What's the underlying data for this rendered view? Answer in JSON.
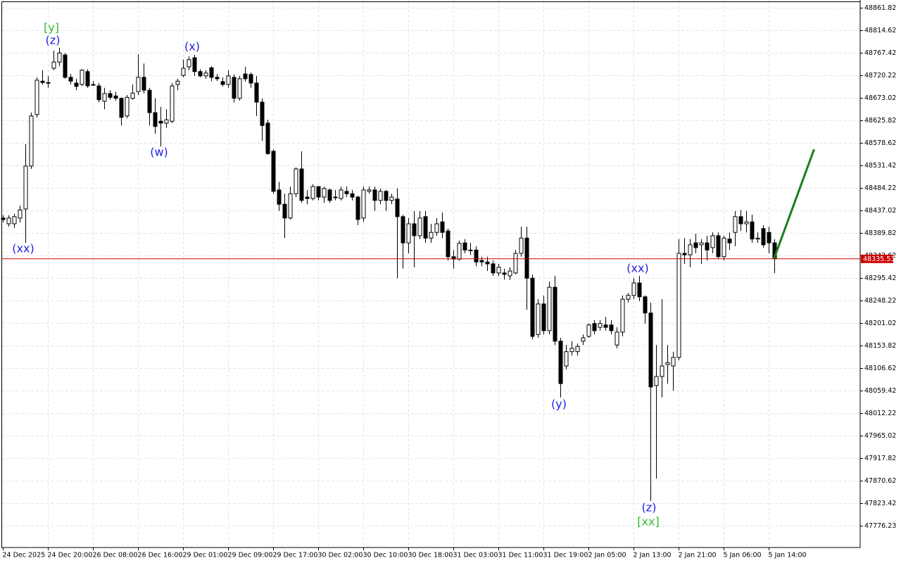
{
  "chart_data": {
    "type": "candlestick",
    "categories": [
      "24 Dec 2025",
      null,
      null,
      null,
      null,
      null,
      null,
      null,
      "24 Dec 20:00",
      null,
      null,
      null,
      null,
      null,
      null,
      null,
      "26 Dec 08:00",
      null,
      null,
      null,
      null,
      null,
      null,
      null,
      "26 Dec 16:00",
      null,
      null,
      null,
      null,
      null,
      null,
      null,
      "29 Dec 01:00",
      null,
      null,
      null,
      null,
      null,
      null,
      null,
      "29 Dec 09:00",
      null,
      null,
      null,
      null,
      null,
      null,
      null,
      "29 Dec 17:00",
      null,
      null,
      null,
      null,
      null,
      null,
      null,
      "30 Dec 02:00",
      null,
      null,
      null,
      null,
      null,
      null,
      null,
      "30 Dec 10:00",
      null,
      null,
      null,
      null,
      null,
      null,
      null,
      "30 Dec 18:00",
      null,
      null,
      null,
      null,
      null,
      null,
      null,
      "31 Dec 03:00",
      null,
      null,
      null,
      null,
      null,
      null,
      null,
      "31 Dec 11:00",
      null,
      null,
      null,
      null,
      null,
      null,
      null,
      "31 Dec 19:00",
      null,
      null,
      null,
      null,
      null,
      null,
      null,
      "2 Jan 05:00",
      null,
      null,
      null,
      null,
      null,
      null,
      null,
      "2 Jan 13:00",
      null,
      null,
      null,
      null,
      null,
      null,
      null,
      "2 Jan 21:00",
      null,
      null,
      null,
      null,
      null,
      null,
      null,
      "5 Jan 06:00",
      null,
      null,
      null,
      null,
      null,
      null,
      null,
      "5 Jan 14:00",
      null
    ],
    "open": [
      48421,
      48409,
      48409,
      48421,
      48440,
      48530,
      48638,
      48708,
      48705,
      48735,
      48748,
      48763,
      48716,
      48704,
      48701,
      48728,
      48701,
      48698,
      48666,
      48682,
      48677,
      48672,
      48635,
      48672,
      48686,
      48716,
      48689,
      48642,
      48624,
      48620,
      48624,
      48701,
      48720,
      48738,
      48757,
      48728,
      48719,
      48736,
      48716,
      48707,
      48701,
      48716,
      48672,
      48723,
      48722,
      48704,
      48664,
      48620,
      48561,
      48480,
      48450,
      48421,
      48472,
      48524,
      48465,
      48462,
      48487,
      48465,
      48480,
      48465,
      48462,
      48477,
      48472,
      48465,
      48421,
      48477,
      48480,
      48458,
      48477,
      48458,
      48461,
      48424,
      48369,
      48409,
      48384,
      48424,
      48379,
      48391,
      48413,
      48394,
      48340,
      48335,
      48369,
      48354,
      48354,
      48332,
      48329,
      48325,
      48306,
      48306,
      48300,
      48306,
      48347,
      48379,
      48295,
      48177,
      48241,
      48185,
      48276,
      48163,
      48111,
      48141,
      48141,
      48163,
      48173,
      48200,
      48192,
      48197,
      48197,
      48155,
      48182,
      48251,
      48259,
      48285,
      48256,
      48222,
      48070,
      48089,
      48114,
      48111,
      48129,
      48347,
      48344,
      48369,
      48365,
      48369,
      48359,
      48384,
      48340,
      48377,
      48391,
      48424,
      48409,
      48413,
      48377,
      48399,
      48391,
      48369
    ],
    "high": [
      48427,
      48427,
      48430,
      48447,
      48576,
      48642,
      48716,
      48731,
      48719,
      48772,
      48778,
      48767,
      48723,
      48713,
      48733,
      48733,
      48708,
      48704,
      48694,
      48689,
      48686,
      48674,
      48679,
      48701,
      48764,
      48745,
      48694,
      48672,
      48654,
      48649,
      48704,
      48713,
      48753,
      48760,
      48763,
      48733,
      48731,
      48739,
      48723,
      48716,
      48731,
      48722,
      48719,
      48738,
      48726,
      48719,
      48672,
      48627,
      48565,
      48497,
      48472,
      48487,
      48527,
      48561,
      48480,
      48492,
      48487,
      48487,
      48483,
      48480,
      48487,
      48487,
      48480,
      48468,
      48487,
      48487,
      48487,
      48483,
      48480,
      48472,
      48483,
      48428,
      48421,
      48436,
      48436,
      48436,
      48409,
      48421,
      48433,
      48399,
      48354,
      48374,
      48377,
      48369,
      48362,
      48340,
      48340,
      48332,
      48325,
      48315,
      48318,
      48354,
      48403,
      48403,
      48303,
      48251,
      48259,
      48288,
      48300,
      48170,
      48155,
      48163,
      48158,
      48177,
      48200,
      48207,
      48207,
      48214,
      48207,
      48192,
      48259,
      48264,
      48295,
      48300,
      48259,
      48244,
      48155,
      48251,
      48155,
      48141,
      48377,
      48379,
      48377,
      48388,
      48377,
      48384,
      48391,
      48391,
      48384,
      48391,
      48436,
      48438,
      48436,
      48428,
      48391,
      48406,
      48403,
      48377
    ],
    "low": [
      48412,
      48403,
      48400,
      48412,
      48369,
      48524,
      48632,
      48701,
      48694,
      48731,
      48739,
      48713,
      48701,
      48689,
      48698,
      48694,
      48698,
      48664,
      48649,
      48669,
      48667,
      48615,
      48630,
      48669,
      48679,
      48682,
      48615,
      48598,
      48571,
      48610,
      48620,
      48689,
      48716,
      48731,
      48719,
      48716,
      48713,
      48708,
      48708,
      48697,
      48694,
      48663,
      48667,
      48707,
      48694,
      48635,
      48583,
      48554,
      48472,
      48436,
      48379,
      48418,
      48465,
      48453,
      48450,
      48458,
      48458,
      48453,
      48453,
      48458,
      48458,
      48465,
      48458,
      48406,
      48413,
      48472,
      48436,
      48450,
      48436,
      48450,
      48295,
      48315,
      48347,
      48318,
      48377,
      48369,
      48369,
      48384,
      48379,
      48332,
      48315,
      48332,
      48347,
      48344,
      48320,
      48320,
      48310,
      48300,
      48300,
      48292,
      48291,
      48303,
      48340,
      48229,
      48167,
      48170,
      48177,
      48177,
      48155,
      48045,
      48104,
      48133,
      48133,
      48155,
      48170,
      48177,
      48185,
      48185,
      48177,
      48148,
      48173,
      48244,
      48251,
      48247,
      48200,
      47828,
      47875,
      48045,
      48074,
      48059,
      48123,
      48325,
      48318,
      48347,
      48325,
      48332,
      48347,
      48335,
      48332,
      48354,
      48362,
      48394,
      48391,
      48369,
      48369,
      48359,
      48347,
      48306
    ],
    "close": [
      48418,
      48421,
      48424,
      48438,
      48530,
      48635,
      48710,
      48705,
      48704,
      48748,
      48767,
      48716,
      48708,
      48697,
      48731,
      48698,
      48701,
      48669,
      48682,
      48674,
      48672,
      48632,
      48674,
      48683,
      48716,
      48689,
      48642,
      48613,
      48620,
      48627,
      48698,
      48708,
      48735,
      48753,
      48728,
      48719,
      48725,
      48716,
      48713,
      48701,
      48719,
      48672,
      48713,
      48713,
      48704,
      48664,
      48615,
      48556,
      48477,
      48450,
      48421,
      48472,
      48524,
      48458,
      48462,
      48487,
      48465,
      48483,
      48458,
      48465,
      48480,
      48472,
      48465,
      48418,
      48480,
      48480,
      48458,
      48477,
      48458,
      48465,
      48424,
      48369,
      48409,
      48384,
      48421,
      48379,
      48391,
      48409,
      48391,
      48340,
      48335,
      48368,
      48354,
      48354,
      48329,
      48329,
      48325,
      48306,
      48318,
      48303,
      48310,
      48347,
      48379,
      48295,
      48173,
      48241,
      48185,
      48276,
      48163,
      48074,
      48141,
      48148,
      48152,
      48170,
      48197,
      48185,
      48200,
      48192,
      48185,
      48182,
      48251,
      48259,
      48285,
      48256,
      48222,
      48067,
      48089,
      48111,
      48118,
      48129,
      48347,
      48344,
      48365,
      48359,
      48369,
      48354,
      48384,
      48340,
      48379,
      48369,
      48424,
      48409,
      48413,
      48377,
      48379,
      48365,
      48369,
      48335.53
    ],
    "up_color": "#ffffff",
    "down_color": "#000000",
    "ylim": [
      47730.5,
      48878.05
    ],
    "yticks": [
      48861.82,
      48814.62,
      48767.42,
      48720.22,
      48673.02,
      48625.82,
      48578.62,
      48531.42,
      48484.22,
      48437.02,
      48389.82,
      48342.62,
      48295.42,
      48248.22,
      48201.02,
      48153.82,
      48106.62,
      48059.42,
      48012.22,
      47965.02,
      47917.82,
      47870.62,
      47823.42,
      47776.23
    ],
    "grid": true,
    "current_price": 48335.53,
    "current_price_color": "#cc0000",
    "forecast": {
      "color": "#1a7f1a",
      "values": [
        48335.53,
        48565
      ]
    },
    "annotations": [
      {
        "text": "[y]",
        "color": "#33bb33"
      },
      {
        "text": "(z)",
        "color": "#1e1ee6"
      },
      {
        "text": "(x)",
        "color": "#1e1ee6"
      },
      {
        "text": "(w)",
        "color": "#1e1ee6"
      },
      {
        "text": "(xx)",
        "color": "#1e1ee6"
      },
      {
        "text": "(xx)",
        "color": "#1e1ee6"
      },
      {
        "text": "(y)",
        "color": "#1e1ee6"
      },
      {
        "text": "(z)",
        "color": "#1e1ee6"
      },
      {
        "text": "[xx]",
        "color": "#33bb33"
      }
    ]
  }
}
